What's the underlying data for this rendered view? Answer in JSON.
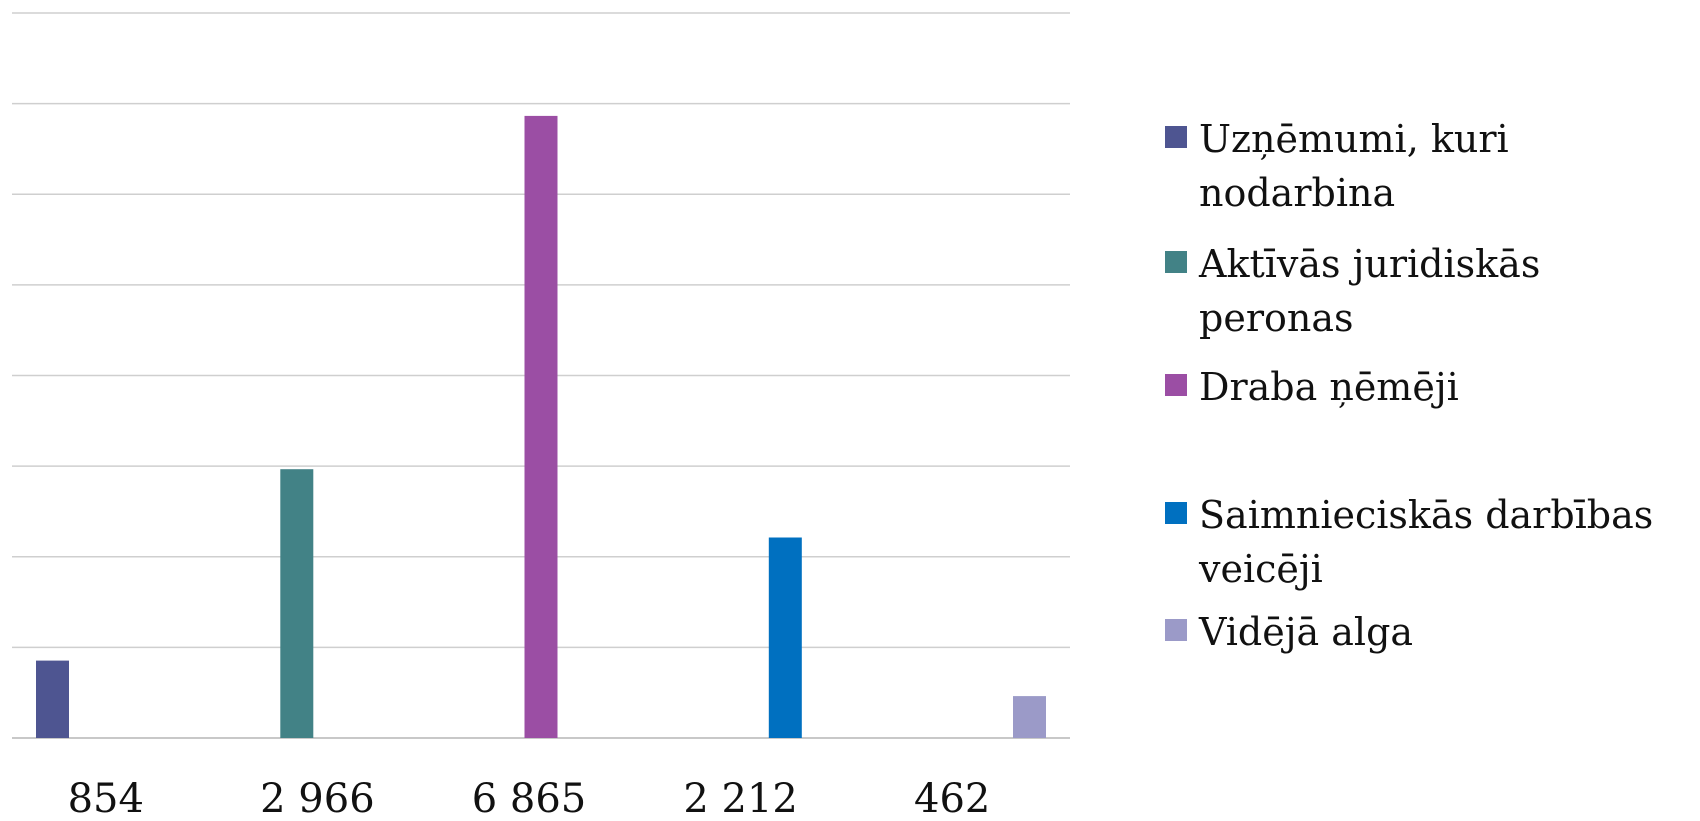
{
  "chart_data": {
    "type": "bar",
    "categories": [
      "854",
      "2 966",
      "6 865",
      "2 212",
      "462"
    ],
    "series": [
      {
        "name": "Uzņēmumi, kuri nodarbina",
        "values": [
          854,
          null,
          null,
          null,
          null
        ],
        "color": "#4e5591"
      },
      {
        "name": "Aktīvās juridiskās peronas",
        "values": [
          null,
          2966,
          null,
          null,
          null
        ],
        "color": "#428286"
      },
      {
        "name": "Draba ņēmēji",
        "values": [
          null,
          null,
          6865,
          null,
          null
        ],
        "color": "#9b4ea4"
      },
      {
        "name": "Saimnieciskās darbības veicēji",
        "values": [
          null,
          null,
          null,
          2212,
          null
        ],
        "color": "#0070c0"
      },
      {
        "name": "Vidējā alga",
        "values": [
          null,
          null,
          null,
          null,
          462
        ],
        "color": "#9b9ac8"
      }
    ],
    "ylim": [
      0,
      8000
    ],
    "grid": true,
    "legend_position": "right",
    "title": "",
    "xlabel": "",
    "ylabel": ""
  }
}
